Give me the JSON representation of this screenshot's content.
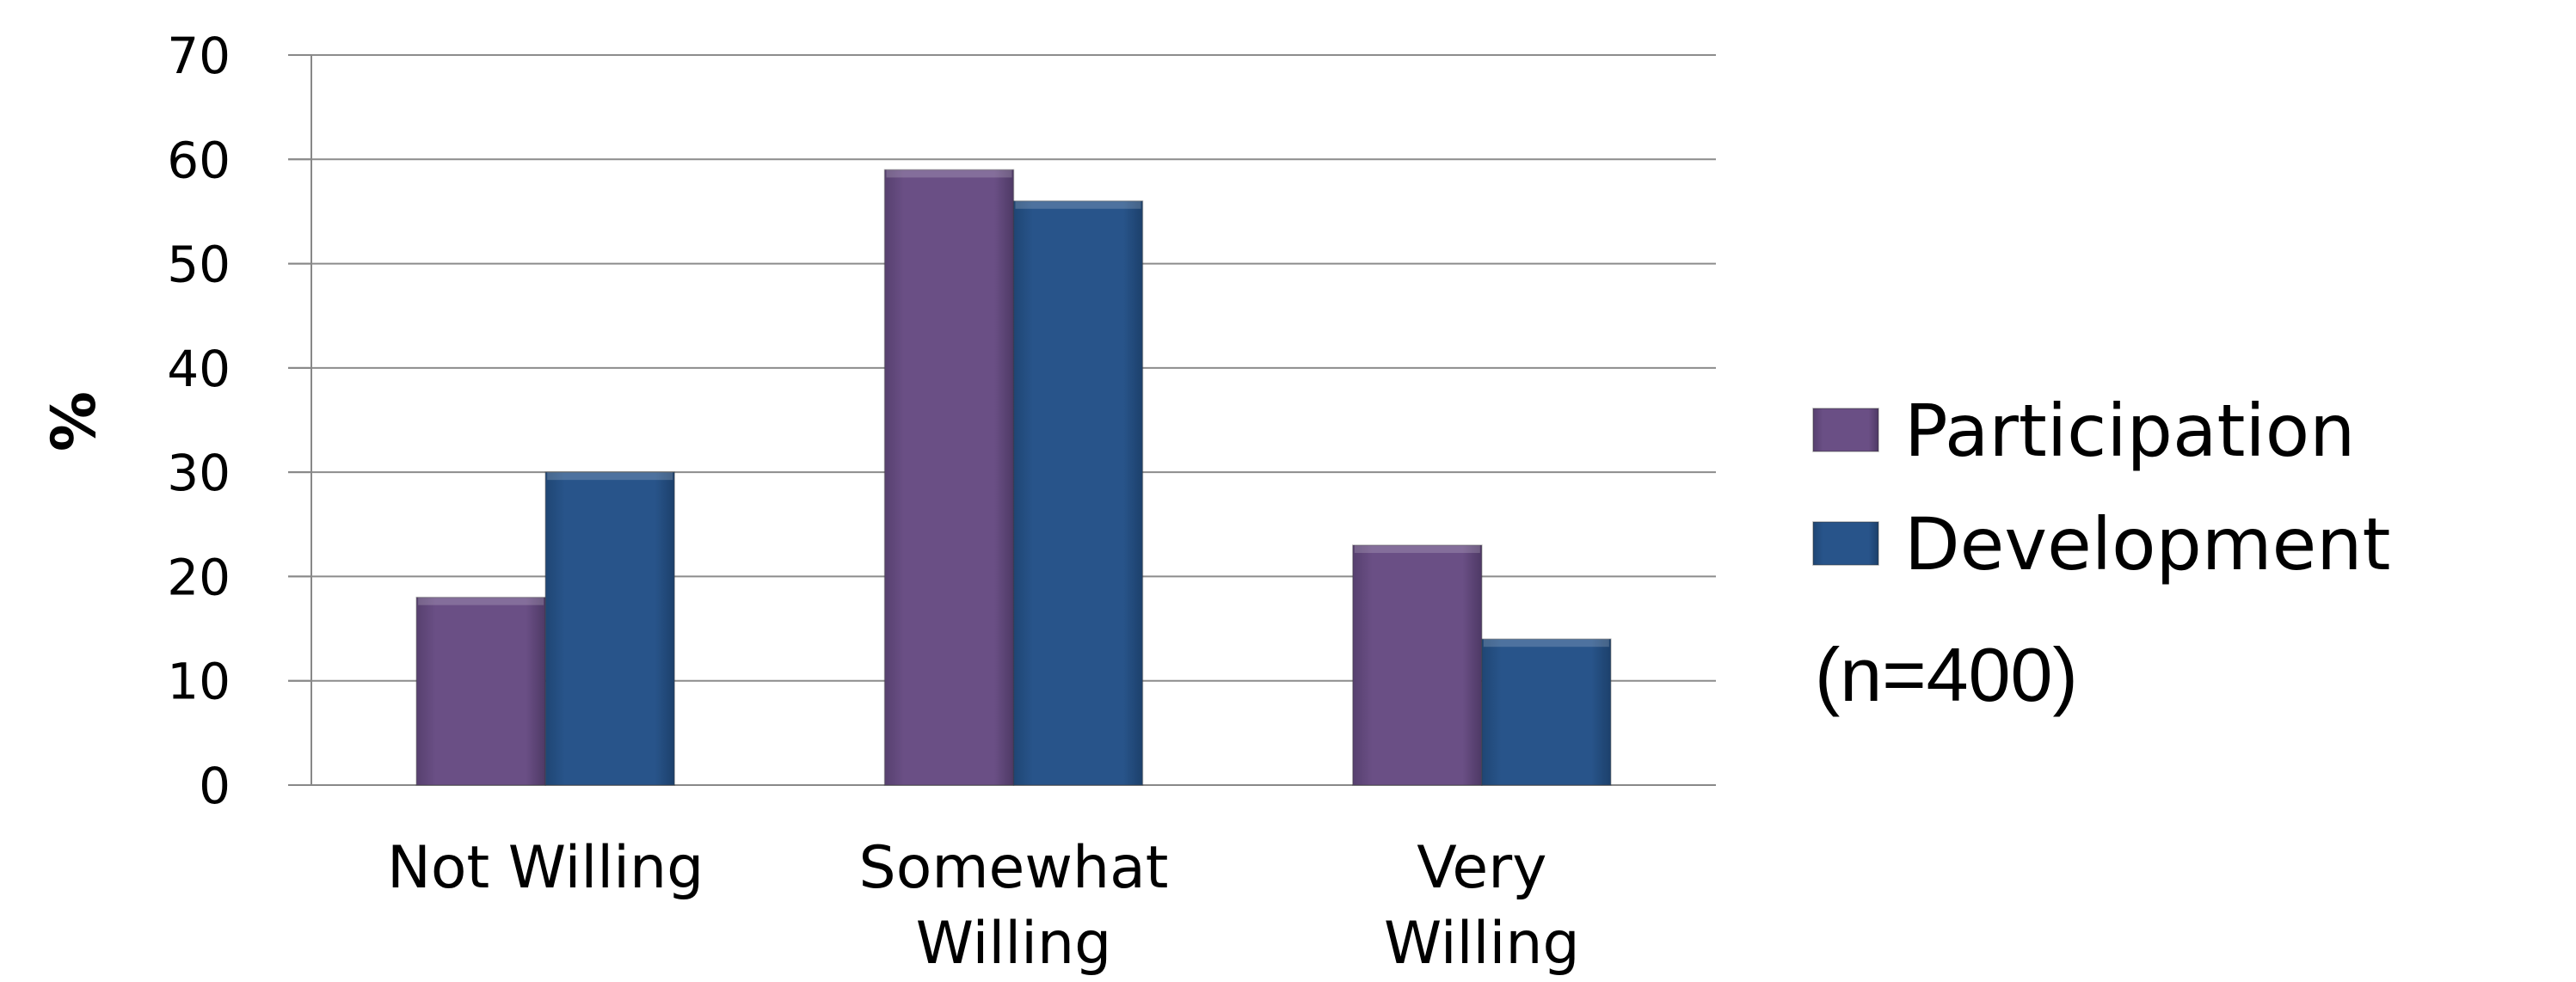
{
  "chart_data": {
    "type": "bar",
    "categories": [
      [
        "Not Willing"
      ],
      [
        "Somewhat",
        "Willing"
      ],
      [
        "Very",
        "Willing"
      ]
    ],
    "series": [
      {
        "name": "Participation",
        "values": [
          18,
          59,
          23
        ],
        "color": "#6a4f85"
      },
      {
        "name": "Development",
        "values": [
          30,
          56,
          14
        ],
        "color": "#28548a"
      }
    ],
    "ylabel": "%",
    "ylim": [
      0,
      70
    ],
    "yticks": [
      0,
      10,
      20,
      30,
      40,
      50,
      60,
      70
    ],
    "grid": true,
    "legend_position": "right",
    "note": "(n=400)"
  }
}
